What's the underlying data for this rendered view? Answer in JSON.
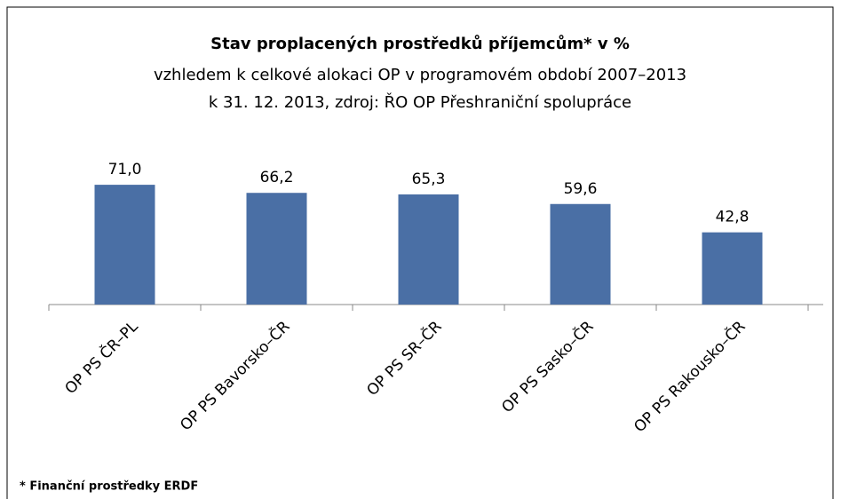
{
  "chart_data": {
    "type": "bar",
    "title": "Stav proplacených prostředků příjemcům* v %",
    "subtitle": [
      "vzhledem k celkové alokaci OP v programovém období 2007–2013",
      "k 31. 12. 2013, zdroj: ŘO OP Přeshraniční spolupráce"
    ],
    "categories": [
      "OP PS ČR–PL",
      "OP PS Bavorsko–ČR",
      "OP PS SR–ČR",
      "OP PS Sasko–ČR",
      "OP PS Rakousko–ČR"
    ],
    "values": [
      71.0,
      66.2,
      65.3,
      59.6,
      42.8
    ],
    "value_labels": [
      "71,0",
      "66,2",
      "65,3",
      "59,6",
      "42,8"
    ],
    "color": "#4a6fa5",
    "ylim": [
      0,
      80
    ],
    "footnote": "* Finanční prostředky ERDF"
  }
}
